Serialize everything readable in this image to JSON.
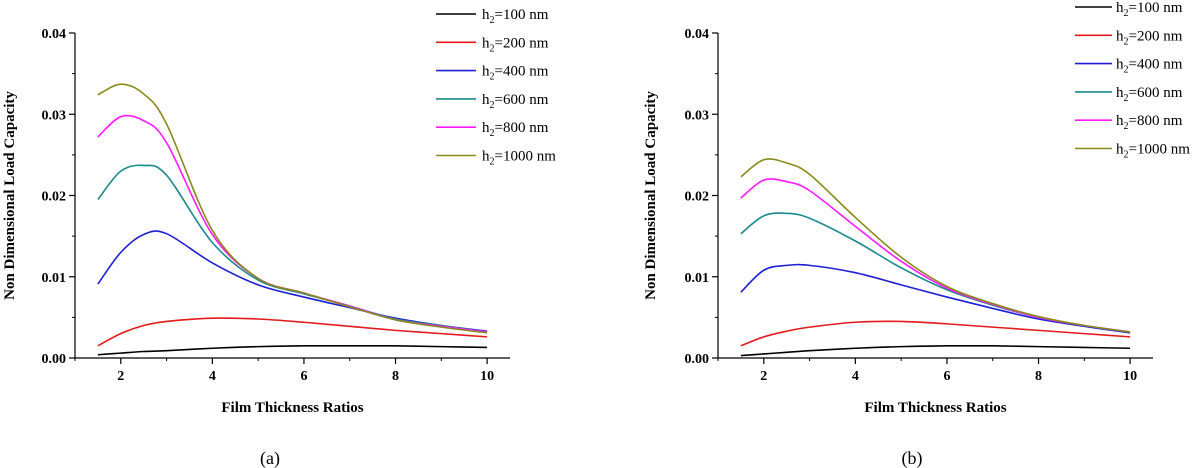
{
  "chart_data": [
    {
      "type": "line",
      "panel_label": "(a)",
      "xlabel": "Film Thickness Ratios",
      "ylabel": "Non Dimensional Load Capacity",
      "xlim": [
        1,
        10.5
      ],
      "ylim": [
        0,
        0.04
      ],
      "xticks": [
        2,
        4,
        6,
        8,
        10
      ],
      "yticks": [
        0.0,
        0.01,
        0.02,
        0.03,
        0.04
      ],
      "ytick_labels": [
        "0.00",
        "0.01",
        "0.02",
        "0.03",
        "0.04"
      ],
      "legend_position": "top-right",
      "x": [
        1.5,
        2,
        2.5,
        3,
        4,
        5,
        6,
        7,
        8,
        9,
        10
      ],
      "series": [
        {
          "name": "h2=100 nm",
          "color": "#000000",
          "values": [
            0.0004,
            0.0006,
            0.0008,
            0.0009,
            0.0012,
            0.0014,
            0.0015,
            0.0015,
            0.0015,
            0.0014,
            0.0013
          ]
        },
        {
          "name": "h2=200 nm",
          "color": "#e41a1c",
          "values": [
            0.0015,
            0.003,
            0.004,
            0.0045,
            0.0049,
            0.0048,
            0.0044,
            0.0039,
            0.0034,
            0.003,
            0.0026
          ]
        },
        {
          "name": "h2=400 nm",
          "color": "#1f1fd6",
          "values": [
            0.0091,
            0.013,
            0.0152,
            0.0153,
            0.0117,
            0.009,
            0.0075,
            0.0062,
            0.0049,
            0.004,
            0.0033
          ]
        },
        {
          "name": "h2=600 nm",
          "color": "#1a8a8a",
          "values": [
            0.0195,
            0.023,
            0.0237,
            0.0225,
            0.0142,
            0.0096,
            0.0079,
            0.0064,
            0.0048,
            0.004,
            0.0032
          ]
        },
        {
          "name": "h2=800 nm",
          "color": "#ff1aff",
          "values": [
            0.0272,
            0.0297,
            0.0292,
            0.0265,
            0.0152,
            0.0098,
            0.008,
            0.0064,
            0.0047,
            0.0039,
            0.0032
          ]
        },
        {
          "name": "h2=1000 nm",
          "color": "#8a8a1a",
          "values": [
            0.0324,
            0.0337,
            0.0325,
            0.0288,
            0.0157,
            0.0098,
            0.008,
            0.0063,
            0.0047,
            0.0038,
            0.0031
          ]
        }
      ]
    },
    {
      "type": "line",
      "panel_label": "(b)",
      "xlabel": "Film Thickness Ratios",
      "ylabel": "Non Dimensional Load Capacity",
      "xlim": [
        1,
        10.5
      ],
      "ylim": [
        0,
        0.04
      ],
      "xticks": [
        2,
        4,
        6,
        8,
        10
      ],
      "yticks": [
        0.0,
        0.01,
        0.02,
        0.03,
        0.04
      ],
      "ytick_labels": [
        "0.00",
        "0.01",
        "0.02",
        "0.03",
        "0.04"
      ],
      "legend_position": "top-right",
      "x": [
        1.5,
        2,
        2.5,
        3,
        4,
        5,
        6,
        7,
        8,
        9,
        10
      ],
      "series": [
        {
          "name": "h2=100 nm",
          "color": "#000000",
          "values": [
            0.0003,
            0.0005,
            0.0007,
            0.0009,
            0.0012,
            0.0014,
            0.0015,
            0.0015,
            0.0014,
            0.0013,
            0.0012
          ]
        },
        {
          "name": "h2=200 nm",
          "color": "#e41a1c",
          "values": [
            0.0015,
            0.0026,
            0.0033,
            0.0038,
            0.0044,
            0.0045,
            0.0042,
            0.0038,
            0.0034,
            0.003,
            0.0026
          ]
        },
        {
          "name": "h2=400 nm",
          "color": "#1f1fd6",
          "values": [
            0.0081,
            0.0108,
            0.0114,
            0.0114,
            0.0105,
            0.009,
            0.0075,
            0.0061,
            0.0048,
            0.0039,
            0.0031
          ]
        },
        {
          "name": "h2=600 nm",
          "color": "#1a8a8a",
          "values": [
            0.0153,
            0.0175,
            0.0178,
            0.0172,
            0.0144,
            0.0111,
            0.0084,
            0.0065,
            0.005,
            0.004,
            0.0032
          ]
        },
        {
          "name": "h2=800 nm",
          "color": "#ff1aff",
          "values": [
            0.0197,
            0.0219,
            0.0217,
            0.0206,
            0.0162,
            0.0119,
            0.0086,
            0.0066,
            0.005,
            0.004,
            0.0032
          ]
        },
        {
          "name": "h2=1000 nm",
          "color": "#8a8a1a",
          "values": [
            0.0223,
            0.0244,
            0.024,
            0.0226,
            0.0173,
            0.0124,
            0.0088,
            0.0067,
            0.0051,
            0.004,
            0.0032
          ]
        }
      ]
    }
  ]
}
